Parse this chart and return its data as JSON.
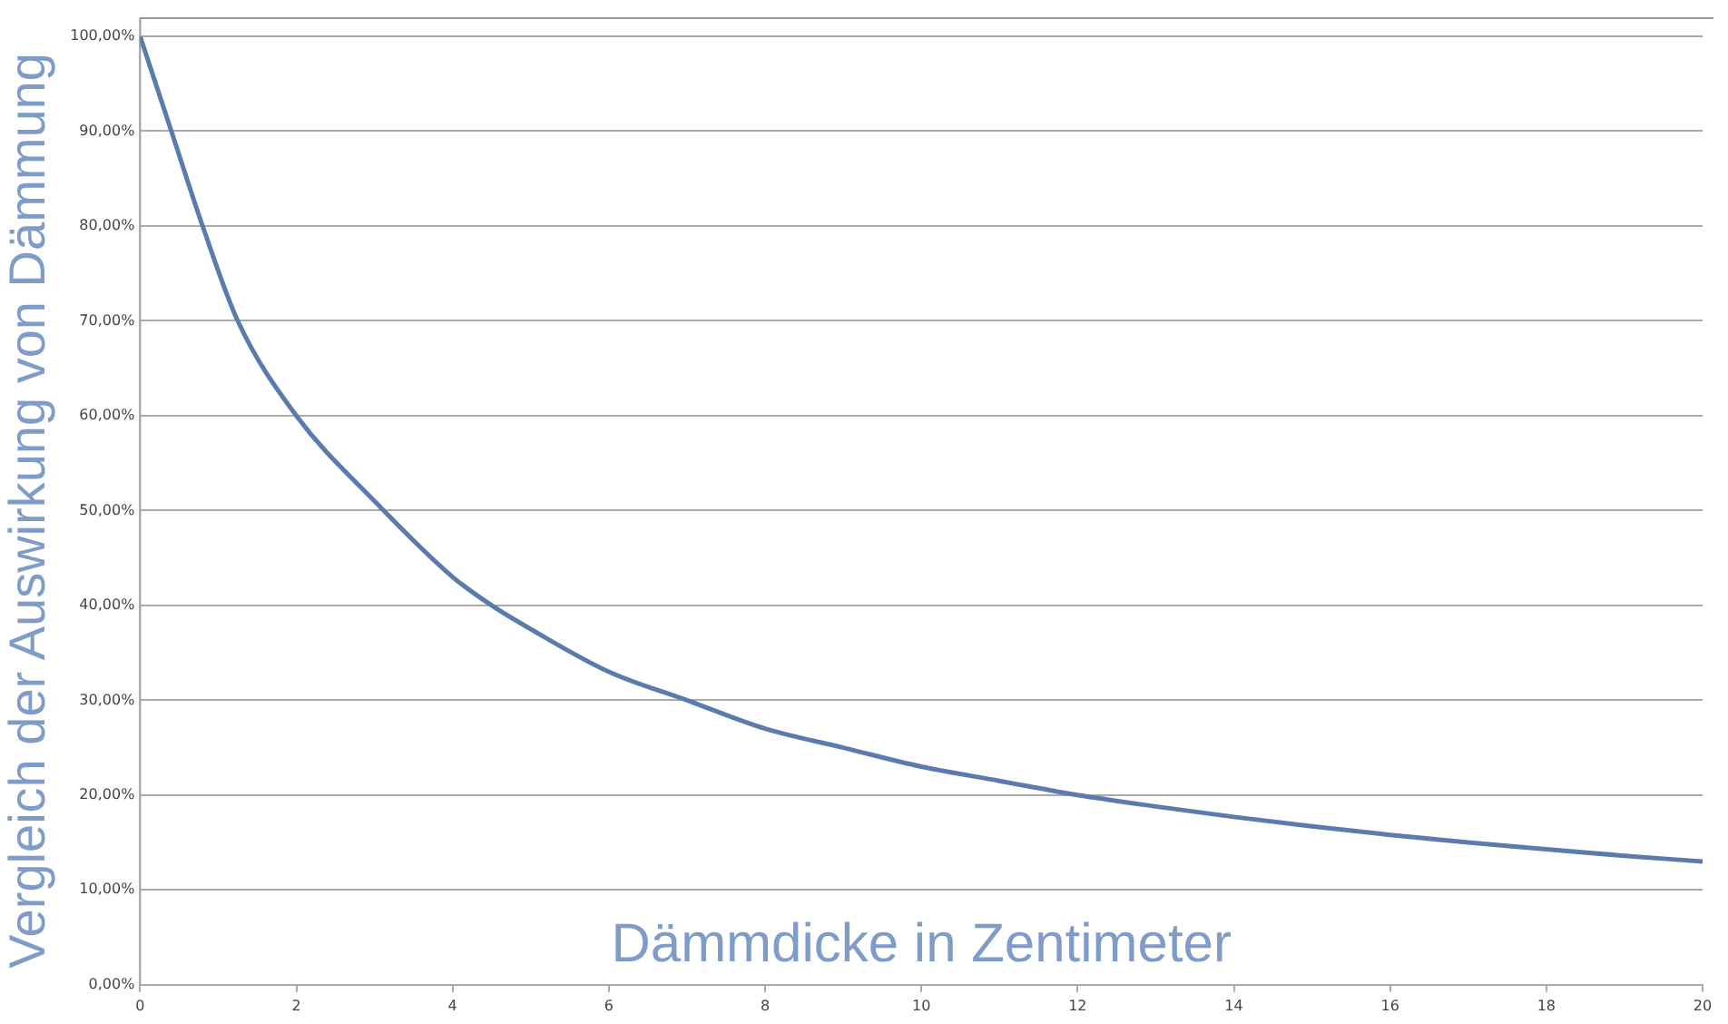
{
  "chart_data": {
    "type": "line",
    "xlabel": "Dämmdicke in Zentimeter",
    "ylabel": "Vergleich der Auswirkung von Dämmung",
    "x": [
      0,
      0.4,
      0.8,
      1.25,
      2,
      3,
      4,
      4.5,
      5,
      6,
      7,
      8,
      9,
      10,
      11,
      12,
      13,
      14,
      15,
      16,
      17,
      18,
      19,
      20
    ],
    "series": [
      {
        "color": "#5a7bab",
        "values": [
          100,
          90,
          80,
          70,
          60,
          51,
          43,
          40,
          37.5,
          33,
          30,
          27,
          25,
          23,
          21.5,
          20,
          18.8,
          17.7,
          16.7,
          15.8,
          15,
          14.3,
          13.6,
          13
        ]
      }
    ],
    "xlim": [
      0,
      20
    ],
    "xticks": [
      0,
      2,
      4,
      6,
      8,
      10,
      12,
      14,
      16,
      18,
      20
    ],
    "ylim": [
      0,
      100
    ],
    "yticks": [
      {
        "value": 0,
        "label": "0,00%"
      },
      {
        "value": 10,
        "label": "10,00%"
      },
      {
        "value": 20,
        "label": "20,00%"
      },
      {
        "value": 30,
        "label": "30,00%"
      },
      {
        "value": 40,
        "label": "40,00%"
      },
      {
        "value": 50,
        "label": "50,00%"
      },
      {
        "value": 60,
        "label": "60,00%"
      },
      {
        "value": 70,
        "label": "70,00%"
      },
      {
        "value": 80,
        "label": "80,00%"
      },
      {
        "value": 90,
        "label": "90,00%"
      },
      {
        "value": 100,
        "label": "100,00%"
      }
    ],
    "grid": "y",
    "legend": false,
    "marker": "none",
    "line_style": "solid"
  }
}
